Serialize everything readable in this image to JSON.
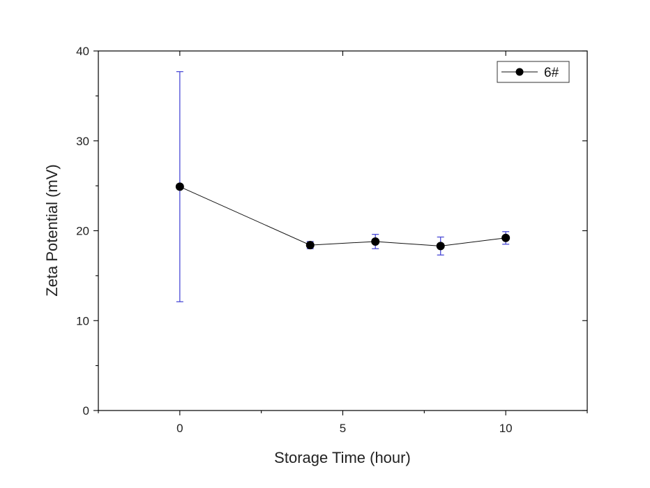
{
  "chart_data": {
    "type": "scatter",
    "xlabel": "Storage Time (hour)",
    "ylabel": "Zeta Potential (mV)",
    "xlim": [
      -2.5,
      12.5
    ],
    "ylim": [
      0,
      40
    ],
    "x_ticks": [
      0,
      5,
      10
    ],
    "x_tick_labels": [
      "0",
      "5",
      "10"
    ],
    "y_ticks": [
      0,
      10,
      20,
      30,
      40
    ],
    "y_tick_labels": [
      "0",
      "10",
      "20",
      "30",
      "40"
    ],
    "legend_position": "top-right",
    "colors": {
      "line": "#111111",
      "marker": "#000000",
      "error_bar": "#4b4bd6"
    },
    "series": [
      {
        "name": "6#",
        "x": [
          0,
          4,
          6,
          8,
          10
        ],
        "y": [
          24.9,
          18.4,
          18.8,
          18.3,
          19.2
        ],
        "err_low": [
          12.1,
          18.0,
          18.0,
          17.3,
          18.5
        ],
        "err_high": [
          37.7,
          18.8,
          19.6,
          19.3,
          19.9
        ]
      }
    ]
  }
}
